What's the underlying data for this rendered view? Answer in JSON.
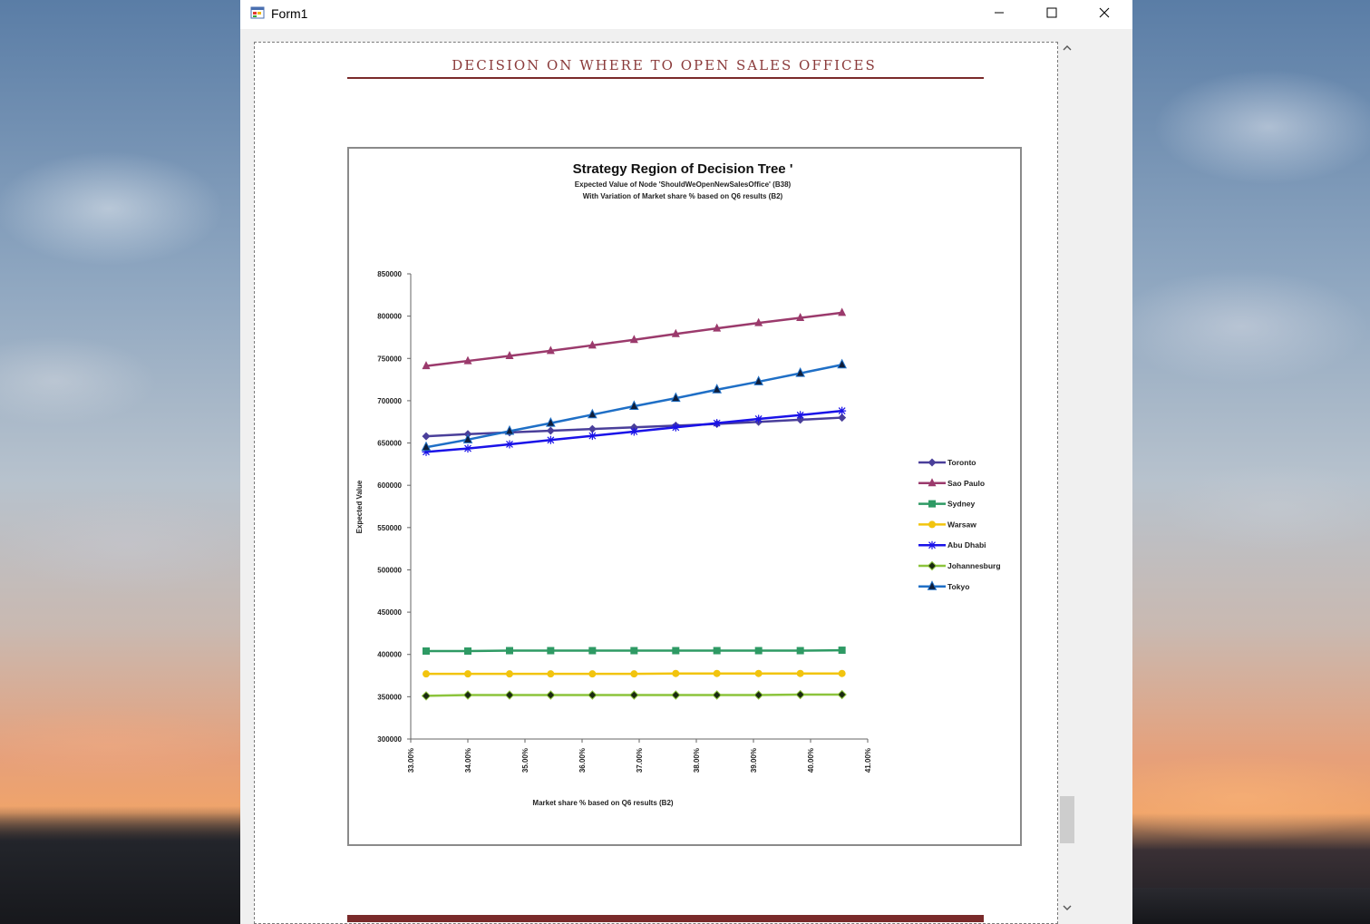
{
  "window": {
    "title": "Form1",
    "icons": {
      "app": "winforms-app-icon",
      "minimize": "minimize-icon",
      "maximize": "maximize-icon",
      "close": "close-icon"
    }
  },
  "document": {
    "heading": "DECISION ON WHERE TO OPEN SALES OFFICES",
    "accent_color": "#7a2a2a"
  },
  "chart_data": {
    "type": "line",
    "title": "Strategy Region of Decision Tree '",
    "subtitle_1": "Expected  Value of Node 'ShouldWeOpenNewSalesOffice'  (B38)",
    "subtitle_2": "With Variation of Market share % based on Q6 results (B2)",
    "xlabel": "Market share % based on Q6 results (B2)",
    "ylabel": "Expected Value",
    "x_ticks": [
      "33.00%",
      "34.00%",
      "35.00%",
      "36.00%",
      "37.00%",
      "38.00%",
      "39.00%",
      "40.00%",
      "41.00%"
    ],
    "y_ticks": [
      "850000",
      "800000",
      "750000",
      "700000",
      "650000",
      "600000",
      "550000",
      "500000",
      "450000",
      "400000",
      "350000",
      "300000"
    ],
    "xlim": [
      33.0,
      41.0
    ],
    "ylim": [
      300000,
      850000
    ],
    "legend_position": "right",
    "x": [
      33.27,
      34.0,
      34.73,
      35.45,
      36.18,
      36.91,
      37.64,
      38.36,
      39.09,
      39.82,
      40.55
    ],
    "series": [
      {
        "name": "Toronto",
        "color": "#4a3f9a",
        "marker": "diamond",
        "values": [
          658000,
          660500,
          662500,
          664500,
          666500,
          668500,
          670500,
          672500,
          675000,
          677500,
          680000
        ]
      },
      {
        "name": "Sao Paulo",
        "color": "#9b3a6c",
        "marker": "triangle",
        "values": [
          741000,
          747000,
          753000,
          759000,
          765500,
          772000,
          779000,
          785500,
          792000,
          798000,
          804000
        ]
      },
      {
        "name": "Sydney",
        "color": "#2e9a64",
        "marker": "square",
        "values": [
          404000,
          404000,
          404500,
          404500,
          404500,
          404500,
          404500,
          404500,
          404500,
          404500,
          405000
        ]
      },
      {
        "name": "Warsaw",
        "color": "#f2c40e",
        "marker": "circle",
        "values": [
          377000,
          377000,
          377000,
          377000,
          377000,
          377000,
          377500,
          377500,
          377500,
          377500,
          377500
        ]
      },
      {
        "name": "Abu Dhabi",
        "color": "#1a12e8",
        "marker": "star",
        "values": [
          639500,
          643500,
          648500,
          653500,
          658500,
          663500,
          668500,
          673500,
          678500,
          683000,
          688000
        ]
      },
      {
        "name": "Johannesburg",
        "color": "#8cc43c",
        "marker": "diamond-dark",
        "values": [
          351000,
          352000,
          352000,
          352000,
          352000,
          352000,
          352000,
          352000,
          352000,
          352500,
          352500
        ]
      },
      {
        "name": "Tokyo",
        "color": "#1f6fc6",
        "marker": "triangle-dark",
        "values": [
          645000,
          654000,
          664000,
          673500,
          683500,
          693500,
          703000,
          713000,
          722500,
          732500,
          742500
        ]
      }
    ]
  },
  "scrollbar": {
    "up_icon": "scroll-up-arrow-icon",
    "down_icon": "scroll-down-arrow-icon"
  }
}
